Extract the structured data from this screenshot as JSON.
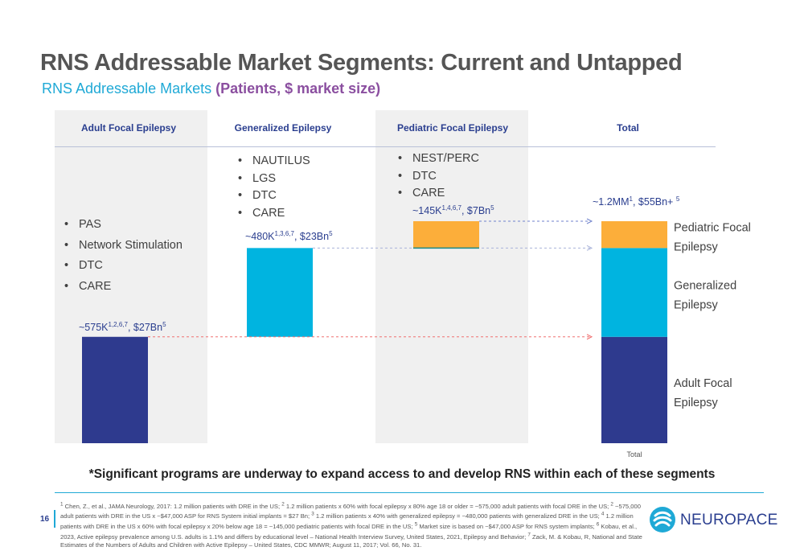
{
  "header": {
    "title": "RNS Addressable Market Segments: Current and Untapped",
    "subtitle_main": "RNS Addressable Markets ",
    "subtitle_bold": "(Patients, $ market size)"
  },
  "columns": [
    {
      "name": "Adult Focal Epilepsy",
      "bullets": [
        "PAS",
        "Network Stimulation",
        "DTC",
        "CARE"
      ]
    },
    {
      "name": "Generalized Epilepsy",
      "bullets": [
        "NAUTILUS",
        "LGS",
        "DTC",
        "CARE"
      ]
    },
    {
      "name": "Pediatric Focal  Epilepsy",
      "bullets": [
        "NEST/PERC",
        "DTC",
        "CARE"
      ]
    },
    {
      "name": "Total",
      "bullets": []
    }
  ],
  "chart_data": {
    "type": "bar",
    "subtype": "waterfall",
    "categories": [
      "Adult Focal Epilepsy",
      "Generalized Epilepsy",
      "Pediatric Focal  Epilepsy",
      "Total"
    ],
    "unit": "thousand patients",
    "series": [
      {
        "name": "Adult Focal Epilepsy",
        "color": "#2e3a8e",
        "values": [
          575,
          0,
          0,
          575
        ]
      },
      {
        "name": "Generalized Epilepsy",
        "color": "#00b4e0",
        "values": [
          0,
          480,
          0,
          480
        ]
      },
      {
        "name": "Pediatric Focal Epilepsy",
        "color": "#fcae3a",
        "values": [
          0,
          0,
          145,
          145
        ]
      }
    ],
    "waterfall_base": [
      0,
      575,
      1055,
      0
    ],
    "data_labels": [
      {
        "category": "Adult Focal Epilepsy",
        "pre": "~575K",
        "sup": "1,2,6,7",
        "mid": ", $27Bn",
        "sup2": "5"
      },
      {
        "category": "Generalized Epilepsy",
        "pre": "~480K",
        "sup": "1,3,6,7",
        "mid": ", $23Bn",
        "sup2": "5"
      },
      {
        "category": "Pediatric Focal  Epilepsy",
        "pre": "~145K",
        "sup": "1,4,6,7",
        "mid": ", $7Bn",
        "sup2": "5"
      },
      {
        "category": "Total",
        "pre": "~1.2MM",
        "sup": "1",
        "mid": ", $55Bn+ ",
        "sup2": "5"
      }
    ],
    "total_segment_labels": [
      {
        "line1": "Pediatric Focal",
        "line2": "Epilepsy"
      },
      {
        "line1": "Generalized",
        "line2": "Epilepsy"
      },
      {
        "line1": "Adult Focal",
        "line2": "Epilepsy"
      }
    ],
    "x_tick_labels": [
      "",
      "",
      "",
      "Total"
    ],
    "ylim": [
      0,
      1200
    ],
    "grid": false,
    "legend": "none",
    "connector_colors": [
      "#f07070",
      "#a9b3d9",
      "#6f82cc"
    ]
  },
  "note": "*Significant programs are underway to expand access to and develop RNS within each of these segments",
  "footer": {
    "page_number": "16",
    "footnotes": [
      {
        "num": "1",
        "text": " Chen, Z., et al., JAMA Neurology, 2017: 1.2 million patients with DRE in the US; "
      },
      {
        "num": "2",
        "text": " 1.2 million patients x 60% with focal epilepsy x 80% age 18 or older = ~575,000 adult patients with focal DRE in the US; "
      },
      {
        "num": "2",
        "text": " ~575,000 adult patients with DRE in the US x ~$47,000 ASP for RNS System initial implants = $27 Bn; "
      },
      {
        "num": "3",
        "text": " 1.2 million patients x 40% with generalized epilepsy = ~480,000 patients with generalized DRE in the US; "
      },
      {
        "num": "4",
        "text": " 1.2 million patients with DRE in the US x 60% with focal epilepsy x 20% below age 18 = ~145,000 pediatric patients with focal DRE in the US; "
      },
      {
        "num": "5",
        "text": " Market size is based on ~$47,000 ASP for RNS system implants; "
      },
      {
        "num": "6",
        "text": " Kobau, et al., 2023, Active epilepsy prevalence among U.S. adults is 1.1% and differs by educational level – National Health Interview Survey, United States, 2021, Epilepsy and Behavior; "
      },
      {
        "num": "7",
        "text": " Zack, M. & Kobau, R, National and State Estimates of the Numbers of Adults and Children with Active Epilepsy – United States, CDC MMWR; August 11, 2017; Vol. 66, No. 31."
      }
    ],
    "logo_text": "NEUROPACE",
    "logo_colors": [
      "#1fa9d6",
      "#2a3e8f"
    ]
  }
}
